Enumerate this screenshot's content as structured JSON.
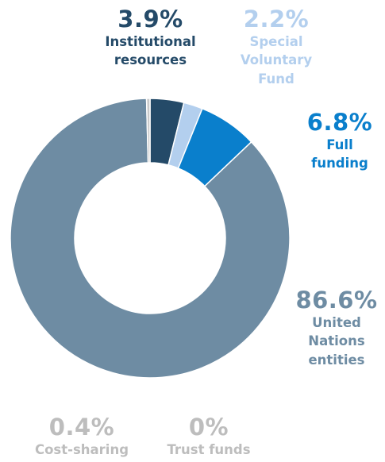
{
  "chart_data": {
    "type": "donut",
    "slices": [
      {
        "pct_label": "3.9%",
        "name_lines": [
          "Institutional",
          "resources"
        ],
        "value": 3.9,
        "color": "#244a68",
        "pct_color": "#244a68",
        "name_color": "#244a68"
      },
      {
        "pct_label": "2.2%",
        "name_lines": [
          "Special",
          "Voluntary",
          "Fund"
        ],
        "value": 2.2,
        "color": "#b3cfee",
        "pct_color": "#b3cfee",
        "name_color": "#b3cfee"
      },
      {
        "pct_label": "6.8%",
        "name_lines": [
          "Full",
          "funding"
        ],
        "value": 6.8,
        "color": "#0a7fcc",
        "pct_color": "#0a7fcc",
        "name_color": "#0a7fcc"
      },
      {
        "pct_label": "86.6%",
        "name_lines": [
          "United",
          "Nations",
          "entities"
        ],
        "value": 86.6,
        "color": "#6e8ca3",
        "pct_color": "#6e8ca3",
        "name_color": "#6e8ca3"
      },
      {
        "pct_label": "0.4%",
        "name_lines": [
          "Cost-sharing"
        ],
        "value": 0.4,
        "color": "#c9c9c9",
        "pct_color": "#bdbdbd",
        "name_color": "#bdbdbd"
      },
      {
        "pct_label": "0%",
        "name_lines": [
          "Trust funds"
        ],
        "value": 0,
        "color": "#c9c9c9",
        "pct_color": "#bdbdbd",
        "name_color": "#bdbdbd"
      }
    ]
  }
}
